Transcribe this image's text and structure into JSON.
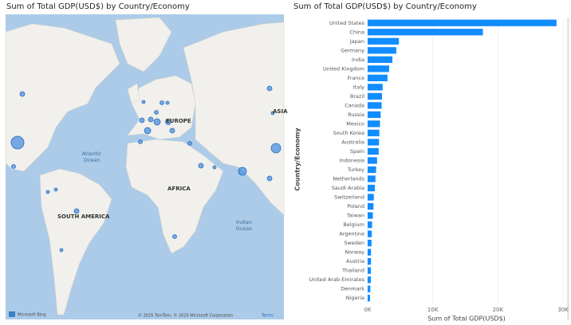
{
  "chart_data": [
    {
      "type": "map",
      "title": "Sum of Total GDP(USD$) by Country/Economy",
      "region_labels": [
        "EUROPE",
        "AFRICA",
        "SOUTH AMERICA",
        "ASIA"
      ],
      "ocean_labels": [
        [
          "Atlantic",
          "Ocean"
        ],
        [
          "Indian",
          "Ocean"
        ]
      ],
      "attribution": "© 2025 TomTom, © 2025 Microsoft Corporation",
      "attribution_link": "Terms",
      "logo": "Microsoft Bing"
    },
    {
      "type": "bar",
      "title": "Sum of Total GDP(USD$) by Country/Economy",
      "orientation": "horizontal",
      "categories": [
        "United States",
        "China",
        "Japan",
        "Germany",
        "India",
        "United Kingdom",
        "France",
        "Italy",
        "Brazil",
        "Canada",
        "Russia",
        "Mexico",
        "South Korea",
        "Australia",
        "Spain",
        "Indonesia",
        "Turkey",
        "Netherlands",
        "Saudi Arabia",
        "Switzerland",
        "Poland",
        "Taiwan",
        "Belgium",
        "Argentina",
        "Sweden",
        "Norway",
        "Austria",
        "Thailand",
        "United Arab Emirates",
        "Denmark",
        "Nigeria"
      ],
      "values": [
        29000,
        17700,
        4800,
        4400,
        3800,
        3300,
        3050,
        2300,
        2200,
        2150,
        2000,
        1900,
        1800,
        1750,
        1700,
        1450,
        1300,
        1200,
        1100,
        950,
        900,
        800,
        680,
        640,
        600,
        520,
        520,
        500,
        490,
        420,
        370
      ],
      "color": "#118dff",
      "xlim": [
        0,
        30000
      ],
      "xticks": [
        {
          "value": 0,
          "label": "0K"
        },
        {
          "value": 10000,
          "label": "10K"
        },
        {
          "value": 20000,
          "label": "20K"
        },
        {
          "value": 30000,
          "label": "30K"
        }
      ],
      "xlabel": "Sum of Total GDP(USD$)",
      "ylabel": "Country/Economy"
    }
  ]
}
